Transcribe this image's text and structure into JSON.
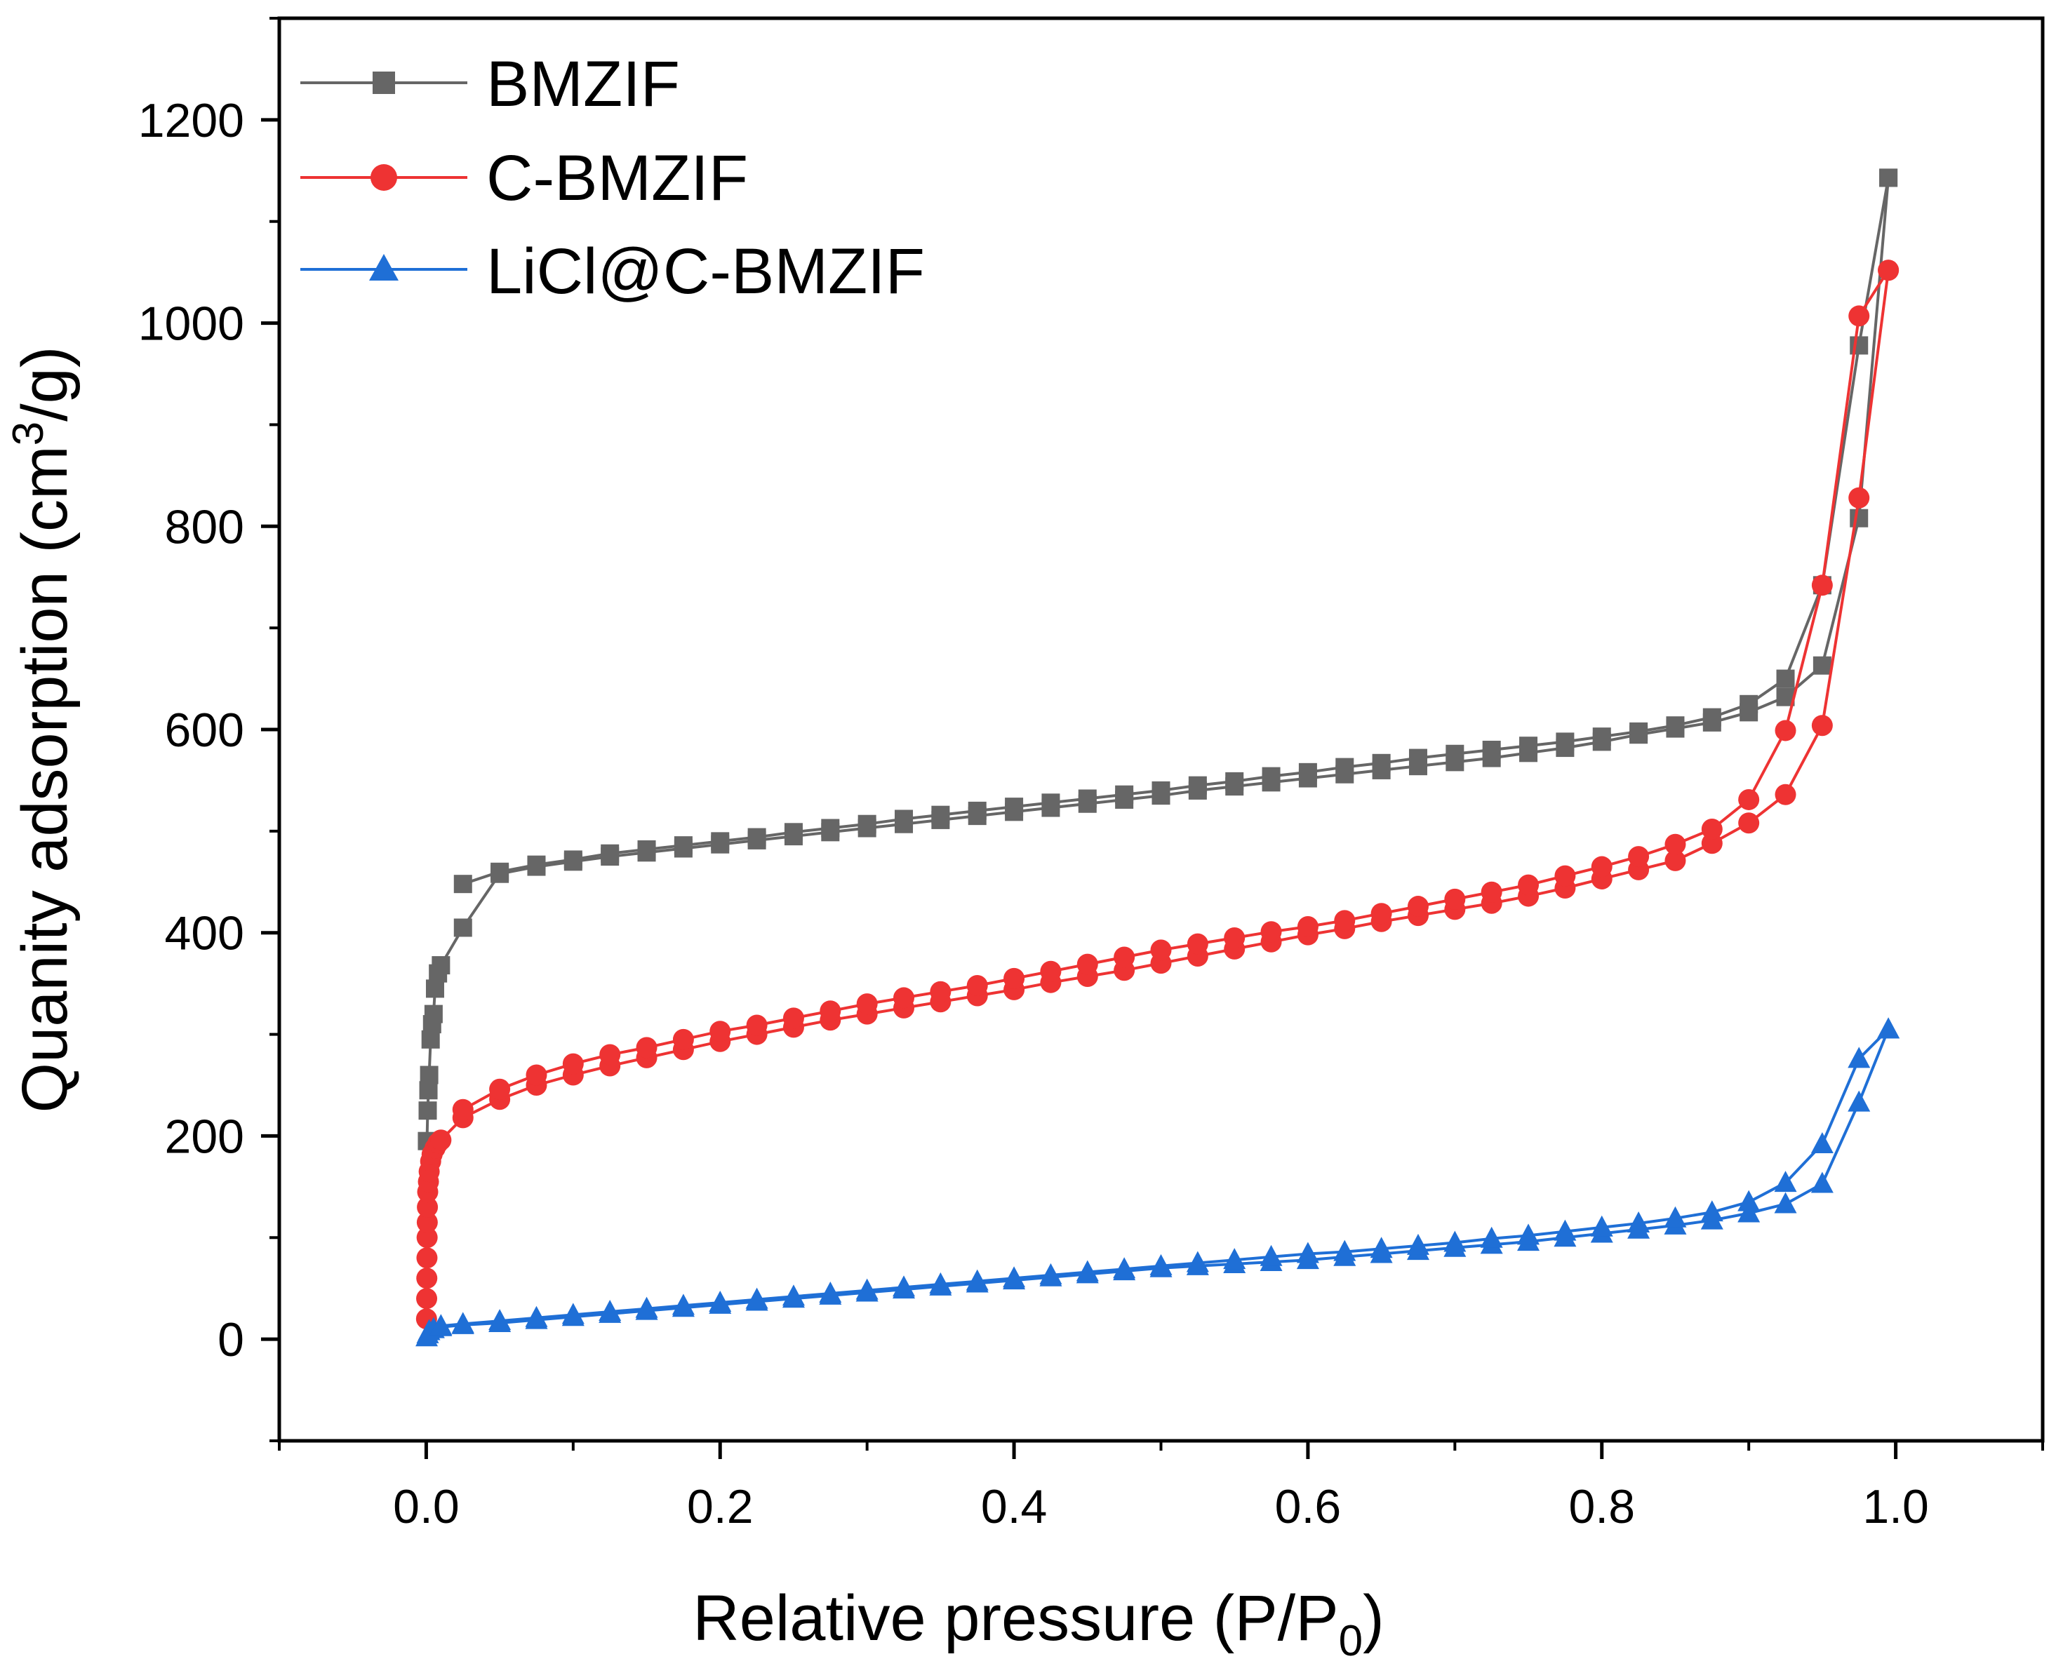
{
  "chart_data": {
    "type": "line",
    "title": "",
    "xlabel": "Relative pressure (P/P",
    "xlabel_sub": "0",
    "xlabel_end": ")",
    "ylabel": "Quanity adsorption (cm",
    "ylabel_sup": "3",
    "ylabel_end": "/g)",
    "xlim": [
      -0.1,
      1.1
    ],
    "ylim": [
      -100,
      1300
    ],
    "xticks": [
      0.0,
      0.2,
      0.4,
      0.6,
      0.8,
      1.0
    ],
    "xtick_labels": [
      "0.0",
      "0.2",
      "0.4",
      "0.6",
      "0.8",
      "1.0"
    ],
    "yticks": [
      0,
      200,
      400,
      600,
      800,
      1000,
      1200
    ],
    "ytick_labels": [
      "0",
      "200",
      "400",
      "600",
      "800",
      "1000",
      "1200"
    ],
    "legend_position": "top-left",
    "grid": false,
    "series": [
      {
        "name": "BMZIF",
        "color": "#666666",
        "marker": "square",
        "branches": [
          [
            [
              0.0005,
              195
            ],
            [
              0.001,
              225
            ],
            [
              0.0015,
              245
            ],
            [
              0.002,
              260
            ],
            [
              0.003,
              295
            ],
            [
              0.004,
              310
            ],
            [
              0.005,
              320
            ],
            [
              0.006,
              345
            ],
            [
              0.008,
              360
            ],
            [
              0.01,
              368
            ],
            [
              0.025,
              405
            ],
            [
              0.05,
              458
            ],
            [
              0.075,
              465
            ],
            [
              0.1,
              470
            ],
            [
              0.125,
              475
            ],
            [
              0.15,
              479
            ],
            [
              0.175,
              483
            ],
            [
              0.2,
              487
            ],
            [
              0.225,
              491
            ],
            [
              0.25,
              495
            ],
            [
              0.275,
              499
            ],
            [
              0.3,
              503
            ],
            [
              0.325,
              507
            ],
            [
              0.35,
              511
            ],
            [
              0.375,
              515
            ],
            [
              0.4,
              519
            ],
            [
              0.425,
              523
            ],
            [
              0.45,
              527
            ],
            [
              0.475,
              531
            ],
            [
              0.5,
              535
            ],
            [
              0.525,
              540
            ],
            [
              0.55,
              544
            ],
            [
              0.575,
              548
            ],
            [
              0.6,
              552
            ],
            [
              0.625,
              556
            ],
            [
              0.65,
              560
            ],
            [
              0.675,
              564
            ],
            [
              0.7,
              568
            ],
            [
              0.725,
              572
            ],
            [
              0.75,
              577
            ],
            [
              0.775,
              582
            ],
            [
              0.8,
              588
            ],
            [
              0.825,
              595
            ],
            [
              0.85,
              601
            ],
            [
              0.875,
              607
            ],
            [
              0.9,
              617
            ],
            [
              0.925,
              632
            ],
            [
              0.95,
              663
            ],
            [
              0.975,
              808
            ],
            [
              0.995,
              1143
            ]
          ],
          [
            [
              0.995,
              1143
            ],
            [
              0.975,
              978
            ],
            [
              0.95,
              742
            ],
            [
              0.925,
              650
            ],
            [
              0.9,
              625
            ],
            [
              0.875,
              612
            ],
            [
              0.85,
              604
            ],
            [
              0.825,
              598
            ],
            [
              0.8,
              593
            ],
            [
              0.775,
              588
            ],
            [
              0.75,
              584
            ],
            [
              0.725,
              580
            ],
            [
              0.7,
              576
            ],
            [
              0.675,
              572
            ],
            [
              0.65,
              567
            ],
            [
              0.625,
              563
            ],
            [
              0.6,
              558
            ],
            [
              0.575,
              554
            ],
            [
              0.55,
              549
            ],
            [
              0.525,
              545
            ],
            [
              0.5,
              540
            ],
            [
              0.475,
              536
            ],
            [
              0.45,
              532
            ],
            [
              0.425,
              528
            ],
            [
              0.4,
              524
            ],
            [
              0.375,
              520
            ],
            [
              0.35,
              516
            ],
            [
              0.325,
              512
            ],
            [
              0.3,
              507
            ],
            [
              0.275,
              503
            ],
            [
              0.25,
              499
            ],
            [
              0.225,
              494
            ],
            [
              0.2,
              490
            ],
            [
              0.175,
              486
            ],
            [
              0.15,
              482
            ],
            [
              0.125,
              478
            ],
            [
              0.1,
              472
            ],
            [
              0.075,
              467
            ],
            [
              0.05,
              460
            ],
            [
              0.025,
              448
            ]
          ]
        ]
      },
      {
        "name": "C-BMZIF",
        "color": "#ee3333",
        "marker": "circle",
        "branches": [
          [
            [
              0.0002,
              20
            ],
            [
              0.0003,
              40
            ],
            [
              0.0004,
              60
            ],
            [
              0.0005,
              80
            ],
            [
              0.0006,
              100
            ],
            [
              0.0007,
              115
            ],
            [
              0.0008,
              130
            ],
            [
              0.001,
              145
            ],
            [
              0.0015,
              155
            ],
            [
              0.002,
              165
            ],
            [
              0.003,
              175
            ],
            [
              0.004,
              182
            ],
            [
              0.006,
              188
            ],
            [
              0.008,
              193
            ],
            [
              0.01,
              196
            ],
            [
              0.025,
              218
            ],
            [
              0.05,
              236
            ],
            [
              0.075,
              250
            ],
            [
              0.1,
              260
            ],
            [
              0.125,
              269
            ],
            [
              0.15,
              277
            ],
            [
              0.175,
              285
            ],
            [
              0.2,
              293
            ],
            [
              0.225,
              300
            ],
            [
              0.25,
              307
            ],
            [
              0.275,
              314
            ],
            [
              0.3,
              320
            ],
            [
              0.325,
              326
            ],
            [
              0.35,
              332
            ],
            [
              0.375,
              338
            ],
            [
              0.4,
              344
            ],
            [
              0.425,
              351
            ],
            [
              0.45,
              357
            ],
            [
              0.475,
              363
            ],
            [
              0.5,
              370
            ],
            [
              0.525,
              377
            ],
            [
              0.55,
              384
            ],
            [
              0.575,
              391
            ],
            [
              0.6,
              398
            ],
            [
              0.625,
              404
            ],
            [
              0.65,
              411
            ],
            [
              0.675,
              417
            ],
            [
              0.7,
              423
            ],
            [
              0.725,
              429
            ],
            [
              0.75,
              436
            ],
            [
              0.775,
              444
            ],
            [
              0.8,
              453
            ],
            [
              0.825,
              462
            ],
            [
              0.85,
              471
            ],
            [
              0.875,
              488
            ],
            [
              0.9,
              508
            ],
            [
              0.925,
              536
            ],
            [
              0.95,
              604
            ],
            [
              0.975,
              828
            ],
            [
              0.995,
              1052
            ]
          ],
          [
            [
              0.995,
              1052
            ],
            [
              0.975,
              1007
            ],
            [
              0.95,
              742
            ],
            [
              0.925,
              599
            ],
            [
              0.9,
              531
            ],
            [
              0.875,
              502
            ],
            [
              0.85,
              487
            ],
            [
              0.825,
              475
            ],
            [
              0.8,
              465
            ],
            [
              0.775,
              456
            ],
            [
              0.75,
              447
            ],
            [
              0.725,
              440
            ],
            [
              0.7,
              433
            ],
            [
              0.675,
              426
            ],
            [
              0.65,
              419
            ],
            [
              0.625,
              412
            ],
            [
              0.6,
              406
            ],
            [
              0.575,
              401
            ],
            [
              0.55,
              395
            ],
            [
              0.525,
              389
            ],
            [
              0.5,
              383
            ],
            [
              0.475,
              376
            ],
            [
              0.45,
              369
            ],
            [
              0.425,
              362
            ],
            [
              0.4,
              355
            ],
            [
              0.375,
              348
            ],
            [
              0.35,
              342
            ],
            [
              0.325,
              336
            ],
            [
              0.3,
              330
            ],
            [
              0.275,
              323
            ],
            [
              0.25,
              316
            ],
            [
              0.225,
              309
            ],
            [
              0.2,
              303
            ],
            [
              0.175,
              295
            ],
            [
              0.15,
              287
            ],
            [
              0.125,
              280
            ],
            [
              0.1,
              271
            ],
            [
              0.075,
              260
            ],
            [
              0.05,
              246
            ],
            [
              0.025,
              226
            ]
          ]
        ]
      },
      {
        "name": "LiCl@C-BMZIF",
        "color": "#1f6fd6",
        "marker": "triangle",
        "branches": [
          [
            [
              0.0003,
              2
            ],
            [
              0.001,
              5
            ],
            [
              0.002,
              8
            ],
            [
              0.005,
              10
            ],
            [
              0.01,
              12
            ],
            [
              0.025,
              14
            ],
            [
              0.05,
              16
            ],
            [
              0.075,
              19
            ],
            [
              0.1,
              22
            ],
            [
              0.125,
              25
            ],
            [
              0.15,
              28
            ],
            [
              0.175,
              31
            ],
            [
              0.2,
              34
            ],
            [
              0.225,
              37
            ],
            [
              0.25,
              40
            ],
            [
              0.275,
              43
            ],
            [
              0.3,
              46
            ],
            [
              0.325,
              49
            ],
            [
              0.35,
              52
            ],
            [
              0.375,
              55
            ],
            [
              0.4,
              58
            ],
            [
              0.425,
              61
            ],
            [
              0.45,
              64
            ],
            [
              0.475,
              67
            ],
            [
              0.5,
              70
            ],
            [
              0.525,
              72
            ],
            [
              0.55,
              74
            ],
            [
              0.575,
              76
            ],
            [
              0.6,
              78
            ],
            [
              0.625,
              81
            ],
            [
              0.65,
              84
            ],
            [
              0.675,
              87
            ],
            [
              0.7,
              90
            ],
            [
              0.725,
              93
            ],
            [
              0.75,
              96
            ],
            [
              0.775,
              100
            ],
            [
              0.8,
              104
            ],
            [
              0.825,
              108
            ],
            [
              0.85,
              112
            ],
            [
              0.875,
              117
            ],
            [
              0.9,
              124
            ],
            [
              0.925,
              133
            ],
            [
              0.95,
              153
            ],
            [
              0.975,
              233
            ],
            [
              0.995,
              305
            ]
          ],
          [
            [
              0.995,
              305
            ],
            [
              0.975,
              276
            ],
            [
              0.95,
              192
            ],
            [
              0.925,
              154
            ],
            [
              0.9,
              135
            ],
            [
              0.875,
              125
            ],
            [
              0.85,
              119
            ],
            [
              0.825,
              114
            ],
            [
              0.8,
              110
            ],
            [
              0.775,
              106
            ],
            [
              0.75,
              102
            ],
            [
              0.725,
              99
            ],
            [
              0.7,
              95
            ],
            [
              0.675,
              92
            ],
            [
              0.65,
              89
            ],
            [
              0.625,
              86
            ],
            [
              0.6,
              84
            ],
            [
              0.575,
              81
            ],
            [
              0.55,
              78
            ],
            [
              0.525,
              75
            ],
            [
              0.5,
              72
            ],
            [
              0.475,
              69
            ],
            [
              0.45,
              66
            ],
            [
              0.425,
              63
            ],
            [
              0.4,
              60
            ],
            [
              0.375,
              57
            ],
            [
              0.35,
              54
            ],
            [
              0.325,
              51
            ],
            [
              0.3,
              48
            ],
            [
              0.275,
              45
            ],
            [
              0.25,
              42
            ],
            [
              0.225,
              39
            ],
            [
              0.2,
              36
            ],
            [
              0.175,
              33
            ],
            [
              0.15,
              30
            ],
            [
              0.125,
              27
            ],
            [
              0.1,
              24
            ],
            [
              0.075,
              21
            ],
            [
              0.05,
              18
            ],
            [
              0.025,
              15
            ],
            [
              0.01,
              13
            ]
          ]
        ]
      }
    ]
  }
}
